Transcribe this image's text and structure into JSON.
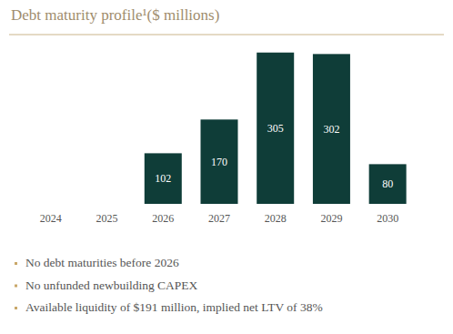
{
  "chart_data": {
    "type": "bar",
    "title": "Debt maturity profile¹($ millions)",
    "categories": [
      "2024",
      "2025",
      "2026",
      "2027",
      "2028",
      "2029",
      "2030"
    ],
    "values": [
      null,
      null,
      102,
      170,
      305,
      302,
      80
    ],
    "color": "#0f3d38",
    "ylim": [
      0,
      310
    ],
    "data_labels": true,
    "tick_labels": "x",
    "grid": false,
    "annotations": [
      "No debt maturities before 2026",
      "No unfunded newbuilding CAPEX",
      "Available liquidity of $191 million, implied net LTV of 38%"
    ]
  }
}
